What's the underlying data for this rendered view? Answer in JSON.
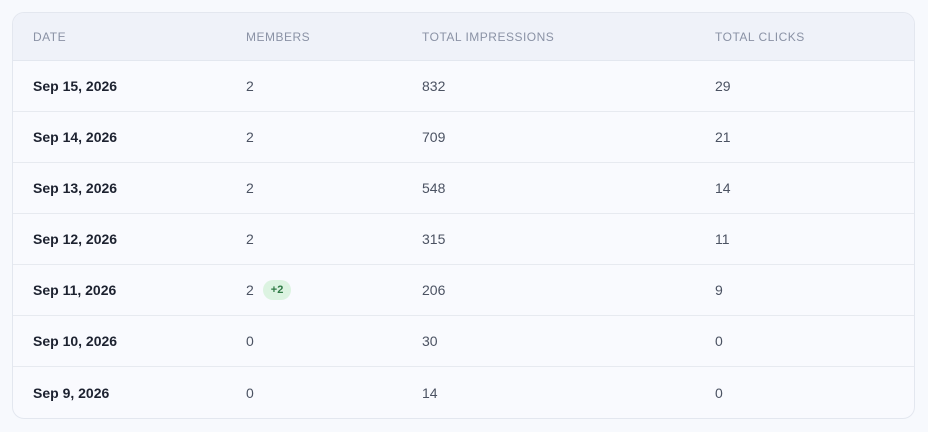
{
  "table": {
    "headers": [
      "DATE",
      "MEMBERS",
      "TOTAL IMPRESSIONS",
      "TOTAL CLICKS"
    ],
    "rows": [
      {
        "date": "Sep 15, 2026",
        "members": 2,
        "impressions": 832,
        "clicks": 29
      },
      {
        "date": "Sep 14, 2026",
        "members": 2,
        "impressions": 709,
        "clicks": 21
      },
      {
        "date": "Sep 13, 2026",
        "members": 2,
        "impressions": 548,
        "clicks": 14
      },
      {
        "date": "Sep 12, 2026",
        "members": 2,
        "impressions": 315,
        "clicks": 11
      },
      {
        "date": "Sep 11, 2026",
        "members": 2,
        "members_badge": "+2",
        "impressions": 206,
        "clicks": 9
      },
      {
        "date": "Sep 10, 2026",
        "members": 0,
        "impressions": 30,
        "clicks": 0
      },
      {
        "date": "Sep 9, 2026",
        "members": 0,
        "impressions": 14,
        "clicks": 0
      }
    ]
  }
}
